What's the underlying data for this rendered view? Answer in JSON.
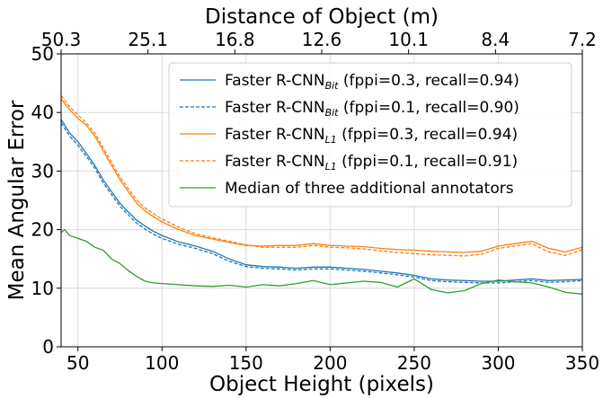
{
  "chart_data": {
    "type": "line",
    "xlabel": "Object Height (pixels)",
    "ylabel": "Mean Angular Error",
    "top_xlabel": "Distance of Object (m)",
    "xlim": [
      40,
      350
    ],
    "ylim": [
      0,
      50
    ],
    "x_ticks": [
      50,
      100,
      150,
      200,
      250,
      300,
      350
    ],
    "y_ticks": [
      0,
      10,
      20,
      30,
      40,
      50
    ],
    "top_ticks": [
      {
        "x": 42,
        "label": "50.3"
      },
      {
        "x": 84,
        "label": "25.1"
      },
      {
        "x": 126,
        "label": "16.8"
      },
      {
        "x": 168,
        "label": "12.6"
      },
      {
        "x": 210,
        "label": "10.1"
      },
      {
        "x": 252,
        "label": "8.4"
      },
      {
        "x": 294,
        "label": "7.2"
      }
    ],
    "grid": true,
    "legend_position": "top-right",
    "series": [
      {
        "name_main": "Faster R-CNN",
        "name_sub": "Bit",
        "name_suffix": " (fppi=0.3, recall=0.94)",
        "color": "#1f77b4",
        "dash": "solid",
        "x": [
          40,
          45,
          50,
          55,
          60,
          65,
          70,
          75,
          80,
          85,
          90,
          95,
          100,
          110,
          120,
          130,
          140,
          150,
          160,
          170,
          180,
          190,
          200,
          210,
          220,
          230,
          240,
          250,
          260,
          270,
          280,
          290,
          300,
          310,
          320,
          330,
          340,
          350
        ],
        "y": [
          38.8,
          36.5,
          35.0,
          33.0,
          31.0,
          28.5,
          26.5,
          24.5,
          23.0,
          21.6,
          20.6,
          19.7,
          19.0,
          17.9,
          17.2,
          16.3,
          15.0,
          14.0,
          13.7,
          13.6,
          13.4,
          13.6,
          13.6,
          13.4,
          13.2,
          12.9,
          12.6,
          12.2,
          11.6,
          11.4,
          11.3,
          11.2,
          11.2,
          11.4,
          11.6,
          11.3,
          11.4,
          11.5
        ]
      },
      {
        "name_main": "Faster R-CNN",
        "name_sub": "Bit",
        "name_suffix": " (fppi=0.1, recall=0.90)",
        "color": "#1f77b4",
        "dash": "dashed",
        "x": [
          40,
          45,
          50,
          55,
          60,
          65,
          70,
          75,
          80,
          85,
          90,
          95,
          100,
          110,
          120,
          130,
          140,
          150,
          160,
          170,
          180,
          190,
          200,
          210,
          220,
          230,
          240,
          250,
          260,
          270,
          280,
          290,
          300,
          310,
          320,
          330,
          340,
          350
        ],
        "y": [
          38.2,
          36.0,
          34.4,
          32.5,
          30.5,
          28.0,
          26.0,
          24.0,
          22.5,
          21.1,
          20.1,
          19.2,
          18.5,
          17.5,
          16.8,
          15.9,
          14.6,
          13.7,
          13.4,
          13.3,
          13.1,
          13.3,
          13.3,
          13.1,
          12.9,
          12.6,
          12.3,
          11.9,
          11.3,
          11.1,
          11.0,
          10.9,
          10.9,
          11.1,
          11.3,
          11.0,
          11.1,
          11.3
        ]
      },
      {
        "name_main": "Faster R-CNN",
        "name_sub": "L1",
        "name_suffix": " (fppi=0.3, recall=0.94)",
        "color": "#ff7f0e",
        "dash": "solid",
        "x": [
          40,
          45,
          50,
          55,
          60,
          65,
          70,
          75,
          80,
          85,
          90,
          95,
          100,
          110,
          120,
          130,
          140,
          150,
          160,
          170,
          180,
          190,
          200,
          210,
          220,
          230,
          240,
          250,
          260,
          270,
          280,
          290,
          300,
          310,
          320,
          330,
          340,
          350
        ],
        "y": [
          42.3,
          40.5,
          39.0,
          37.8,
          36.0,
          33.5,
          31.0,
          28.5,
          26.5,
          24.5,
          23.2,
          22.2,
          21.3,
          20.0,
          19.0,
          18.4,
          17.8,
          17.3,
          17.2,
          17.3,
          17.3,
          17.6,
          17.3,
          17.2,
          17.1,
          16.8,
          16.6,
          16.5,
          16.3,
          16.2,
          16.1,
          16.3,
          17.2,
          17.6,
          18.0,
          16.8,
          16.2,
          17.0
        ]
      },
      {
        "name_main": "Faster R-CNN",
        "name_sub": "L1",
        "name_suffix": " (fppi=0.1, recall=0.91)",
        "color": "#ff7f0e",
        "dash": "dashed",
        "x": [
          40,
          45,
          50,
          55,
          60,
          65,
          70,
          75,
          80,
          85,
          90,
          95,
          100,
          110,
          120,
          130,
          140,
          150,
          160,
          170,
          180,
          190,
          200,
          210,
          220,
          230,
          240,
          250,
          260,
          270,
          280,
          290,
          300,
          310,
          320,
          330,
          340,
          350
        ],
        "y": [
          42.9,
          41.0,
          39.6,
          38.2,
          36.5,
          34.0,
          31.5,
          29.0,
          27.0,
          25.0,
          23.7,
          22.7,
          21.8,
          20.4,
          19.3,
          18.6,
          18.0,
          17.4,
          17.0,
          17.0,
          17.0,
          17.3,
          17.0,
          16.9,
          16.7,
          16.4,
          16.1,
          15.9,
          15.7,
          15.6,
          15.5,
          15.8,
          16.8,
          17.2,
          17.6,
          16.2,
          15.6,
          16.6
        ]
      },
      {
        "name_main": "Median of three additional annotators",
        "name_sub": "",
        "name_suffix": "",
        "color": "#2ca02c",
        "dash": "solid",
        "x": [
          40,
          42,
          45,
          50,
          55,
          60,
          65,
          70,
          75,
          80,
          85,
          90,
          95,
          100,
          110,
          120,
          130,
          140,
          150,
          160,
          170,
          180,
          190,
          200,
          210,
          220,
          230,
          240,
          250,
          260,
          270,
          280,
          290,
          300,
          310,
          320,
          330,
          340,
          350
        ],
        "y": [
          19.5,
          20.0,
          19.0,
          18.5,
          18.0,
          17.0,
          16.5,
          15.0,
          14.2,
          13.0,
          12.0,
          11.2,
          10.9,
          10.8,
          10.6,
          10.4,
          10.3,
          10.5,
          10.2,
          10.6,
          10.4,
          10.8,
          11.3,
          10.6,
          10.9,
          11.2,
          11.0,
          10.2,
          11.6,
          9.8,
          9.2,
          9.6,
          10.8,
          11.4,
          11.1,
          10.9,
          10.2,
          9.3,
          9.0
        ]
      }
    ]
  }
}
